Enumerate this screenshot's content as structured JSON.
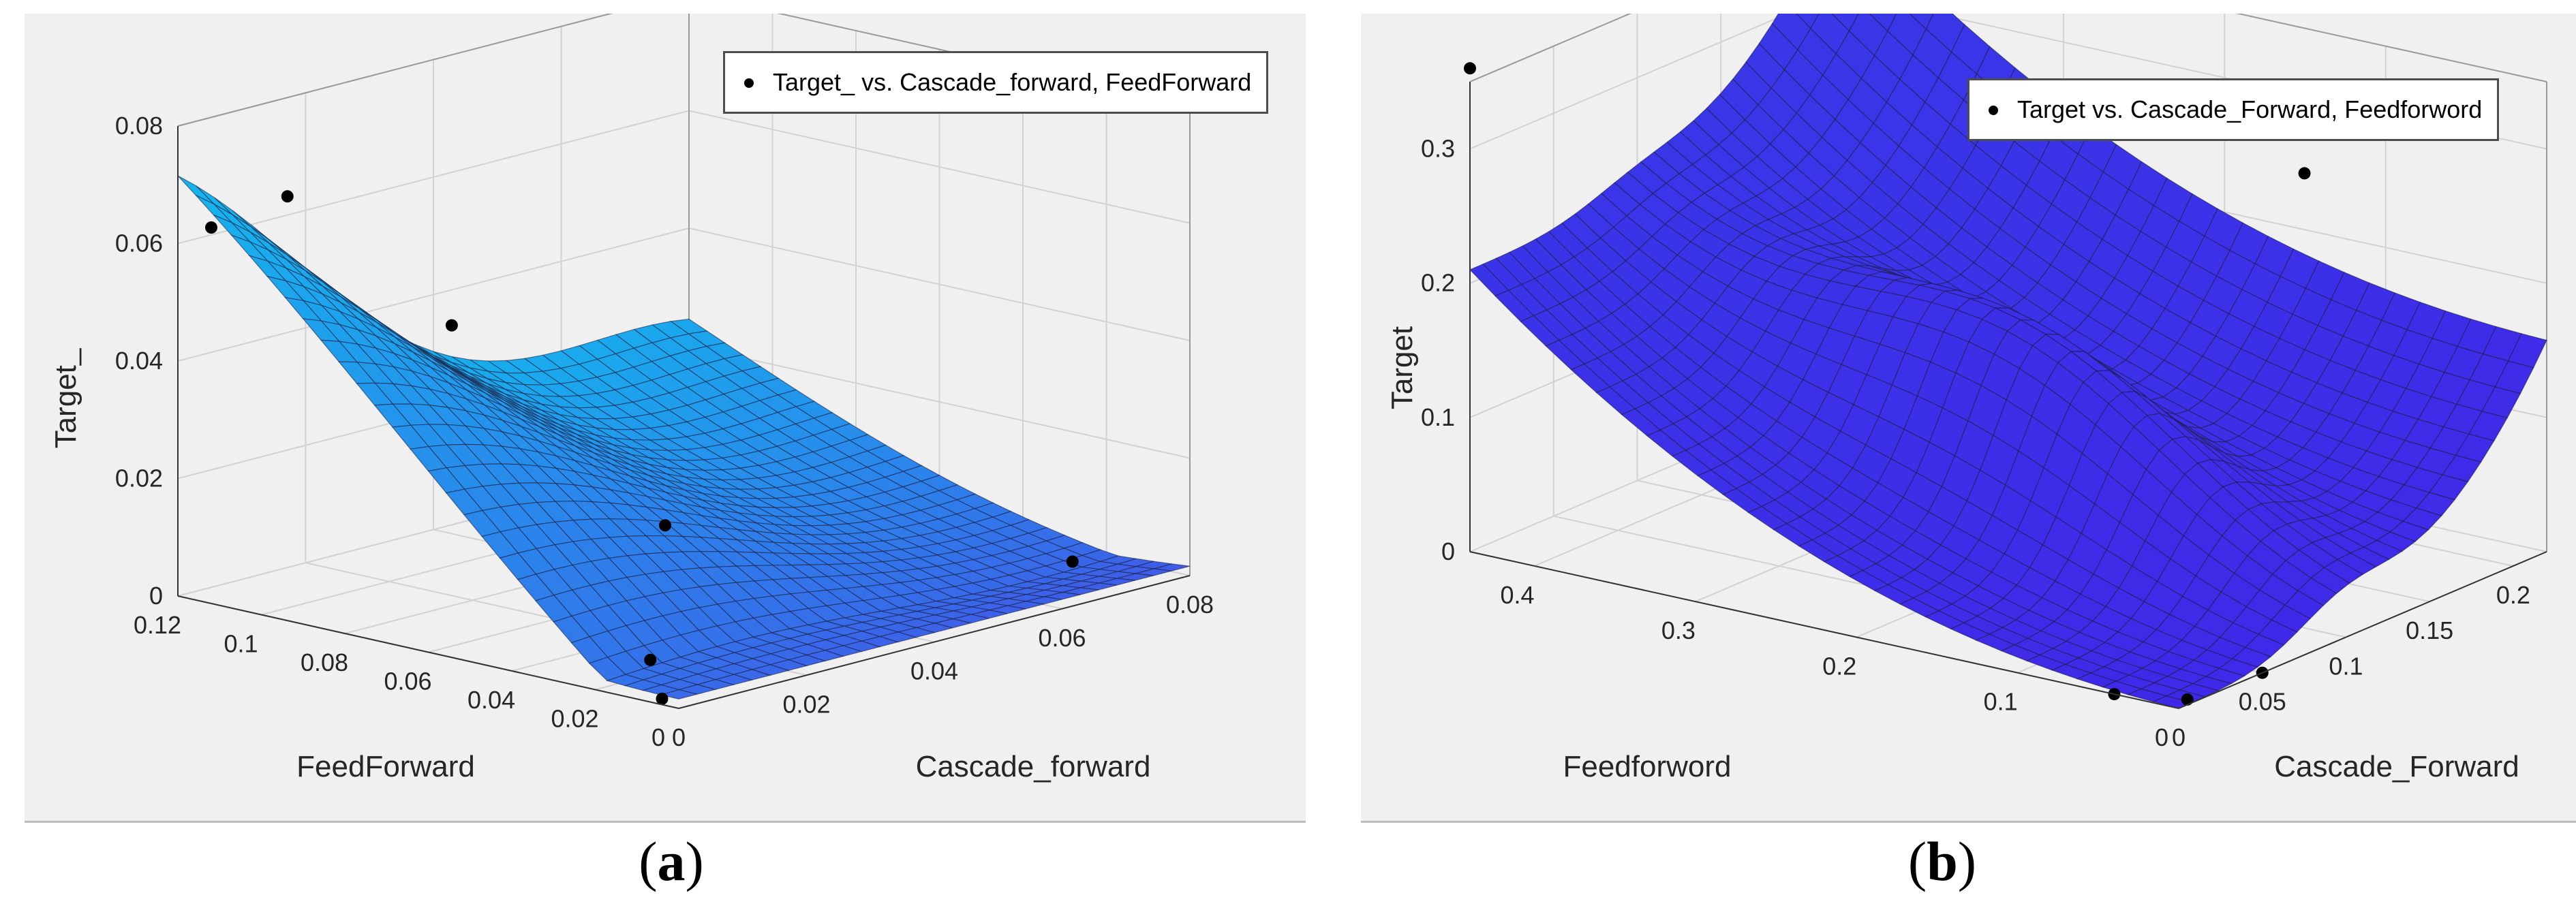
{
  "chart_data": [
    {
      "type": "surface",
      "panel_label": "a",
      "xlabel": "Cascade_forward",
      "ylabel": "FeedForward",
      "zlabel": "Target_",
      "xticks": [
        "0",
        "0.02",
        "0.04",
        "0.06",
        "0.08"
      ],
      "yticks": [
        "0",
        "0.02",
        "0.04",
        "0.06",
        "0.08",
        "0.1",
        "0.12"
      ],
      "zticks": [
        "0",
        "0.02",
        "0.04",
        "0.06",
        "0.08"
      ],
      "xlim": [
        0,
        0.08
      ],
      "ylim": [
        0,
        0.12
      ],
      "zlim": [
        0,
        0.08
      ],
      "grid": true,
      "legend": {
        "label": "Target_ vs. Cascade_forward, FeedForward",
        "position": "top-right"
      },
      "surface_color": "#1ea0e8",
      "points": [
        {
          "x": 0.0,
          "y": 0.112,
          "z": 0.064
        },
        {
          "x": 0.008,
          "y": 0.106,
          "z": 0.068
        },
        {
          "x": 0.02,
          "y": 0.085,
          "z": 0.046
        },
        {
          "x": 0.024,
          "y": 0.04,
          "z": 0.018
        },
        {
          "x": 0.006,
          "y": 0.016,
          "z": 0.004
        },
        {
          "x": 0.0,
          "y": 0.004,
          "z": 0.001
        },
        {
          "x": 0.076,
          "y": 0.022,
          "z": 0.0
        }
      ]
    },
    {
      "type": "surface",
      "panel_label": "b",
      "xlabel": "Cascade_Forward",
      "ylabel": "Feedforword",
      "zlabel": "Target",
      "xticks": [
        "0",
        "0.05",
        "0.1",
        "0.15",
        "0.2"
      ],
      "yticks": [
        "0",
        "0.1",
        "0.2",
        "0.3",
        "0.4"
      ],
      "zticks": [
        "0",
        "0.1",
        "0.2",
        "0.3"
      ],
      "xlim": [
        0,
        0.22
      ],
      "ylim": [
        0,
        0.44
      ],
      "zlim": [
        0,
        0.35
      ],
      "grid": true,
      "legend": {
        "label": "Target vs. Cascade_Forward, Feedforword",
        "position": "top-right"
      },
      "surface_color": "#3b2fe8",
      "points": [
        {
          "x": 0.0,
          "y": 0.44,
          "z": 0.36
        },
        {
          "x": 0.21,
          "y": 0.14,
          "z": 0.25
        },
        {
          "x": 0.0,
          "y": 0.04,
          "z": 0.0
        },
        {
          "x": 0.01,
          "y": 0.005,
          "z": 0.0
        },
        {
          "x": 0.05,
          "y": 0.0,
          "z": 0.0
        }
      ]
    }
  ],
  "captions": {
    "a": "a",
    "b": "b"
  }
}
